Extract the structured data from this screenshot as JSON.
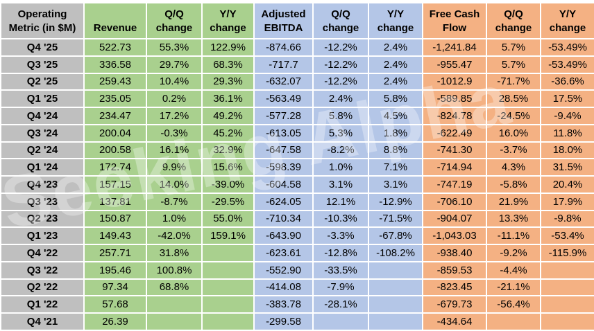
{
  "watermark_text": "Seeking Alpha",
  "colors": {
    "label_column": "#BFBFBF",
    "revenue_group": "#A9D08E",
    "ebitda_group": "#B4C6E7",
    "fcf_group": "#F4B183",
    "gridline": "#FFFFFF",
    "text": "#000000"
  },
  "table": {
    "corner_header": "Operating Metric (in $M)",
    "groups": [
      {
        "name": "revenue",
        "headers": [
          "Revenue",
          "Q/Q change",
          "Y/Y change"
        ]
      },
      {
        "name": "adjusted-ebitda",
        "headers": [
          "Adjusted EBITDA",
          "Q/Q change",
          "Y/Y change"
        ]
      },
      {
        "name": "free-cash-flow",
        "headers": [
          "Free Cash Flow",
          "Q/Q change",
          "Y/Y change"
        ]
      }
    ],
    "rows": [
      {
        "label": "Q4 '25",
        "cells": [
          "522.73",
          "55.3%",
          "122.9%",
          "-874.66",
          "-12.2%",
          "2.4%",
          "-1,241.84",
          "5.7%",
          "-53.49%"
        ]
      },
      {
        "label": "Q3 '25",
        "cells": [
          "336.58",
          "29.7%",
          "68.3%",
          "-717.7",
          "-12.2%",
          "2.4%",
          "-955.47",
          "5.7%",
          "-53.49%"
        ]
      },
      {
        "label": "Q2 '25",
        "cells": [
          "259.43",
          "10.4%",
          "29.3%",
          "-632.07",
          "-12.2%",
          "2.4%",
          "-1012.9",
          "-71.7%",
          "-36.6%"
        ]
      },
      {
        "label": "Q1 '25",
        "cells": [
          "235.05",
          "0.2%",
          "36.1%",
          "-563.49",
          "2.4%",
          "5.8%",
          "-589.85",
          "28.5%",
          "17.5%"
        ]
      },
      {
        "label": "Q4 '24",
        "cells": [
          "234.47",
          "17.2%",
          "49.2%",
          "-577.28",
          "5.8%",
          "4.5%",
          "-824.78",
          "-24.5%",
          "-9.4%"
        ]
      },
      {
        "label": "Q3 '24",
        "cells": [
          "200.04",
          "-0.3%",
          "45.2%",
          "-613.05",
          "5.3%",
          "1.8%",
          "-622.49",
          "16.0%",
          "11.8%"
        ]
      },
      {
        "label": "Q2 '24",
        "cells": [
          "200.58",
          "16.1%",
          "32.9%",
          "-647.58",
          "-8.2%",
          "8.8%",
          "-741.30",
          "-3.7%",
          "18.0%"
        ]
      },
      {
        "label": "Q1 '24",
        "cells": [
          "172.74",
          "9.9%",
          "15.6%",
          "-598.39",
          "1.0%",
          "7.1%",
          "-714.94",
          "4.3%",
          "31.5%"
        ]
      },
      {
        "label": "Q4 '23",
        "cells": [
          "157.15",
          "14.0%",
          "-39.0%",
          "-604.58",
          "3.1%",
          "3.1%",
          "-747.19",
          "-5.8%",
          "20.4%"
        ]
      },
      {
        "label": "Q3 '23",
        "cells": [
          "137.81",
          "-8.7%",
          "-29.5%",
          "-624.05",
          "12.1%",
          "-12.9%",
          "-706.10",
          "21.9%",
          "17.9%"
        ]
      },
      {
        "label": "Q2 '23",
        "cells": [
          "150.87",
          "1.0%",
          "55.0%",
          "-710.34",
          "-10.3%",
          "-71.5%",
          "-904.07",
          "13.3%",
          "-9.8%"
        ]
      },
      {
        "label": "Q1 '23",
        "cells": [
          "149.43",
          "-42.0%",
          "159.1%",
          "-643.90",
          "-3.3%",
          "-67.8%",
          "-1,043.03",
          "-11.1%",
          "-53.4%"
        ]
      },
      {
        "label": "Q4 '22",
        "cells": [
          "257.71",
          "31.8%",
          "",
          "-623.61",
          "-12.8%",
          "-108.2%",
          "-938.40",
          "-9.2%",
          "-115.9%"
        ]
      },
      {
        "label": "Q3 '22",
        "cells": [
          "195.46",
          "100.8%",
          "",
          "-552.90",
          "-33.5%",
          "",
          "-859.53",
          "-4.4%",
          ""
        ]
      },
      {
        "label": "Q2 '22",
        "cells": [
          "97.34",
          "68.8%",
          "",
          "-414.08",
          "-7.9%",
          "",
          "-823.45",
          "-21.1%",
          ""
        ]
      },
      {
        "label": "Q1 '22",
        "cells": [
          "57.68",
          "",
          "",
          "-383.78",
          "-28.1%",
          "",
          "-679.73",
          "-56.4%",
          ""
        ]
      },
      {
        "label": "Q4 '21",
        "cells": [
          "26.39",
          "",
          "",
          "-299.58",
          "",
          "",
          "-434.64",
          "",
          ""
        ]
      }
    ]
  }
}
